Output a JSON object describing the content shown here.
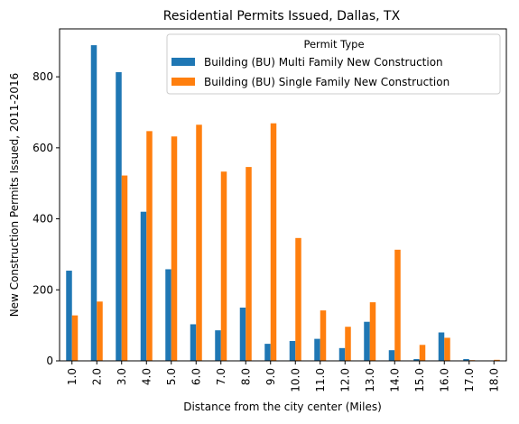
{
  "chart_data": {
    "type": "bar",
    "title": "Residential Permits Issued, Dallas, TX",
    "xlabel": "Distance from the city center (Miles)",
    "ylabel": "New Construction Permits Issued, 2011-2016",
    "categories": [
      "1.0",
      "2.0",
      "3.0",
      "4.0",
      "5.0",
      "6.0",
      "7.0",
      "8.0",
      "9.0",
      "10.0",
      "11.0",
      "12.0",
      "13.0",
      "14.0",
      "15.0",
      "16.0",
      "17.0",
      "18.0"
    ],
    "series": [
      {
        "name": "Building (BU) Multi Family  New Construction",
        "color": "#1f77b4",
        "values": [
          254,
          889,
          813,
          420,
          258,
          103,
          86,
          150,
          48,
          56,
          62,
          36,
          110,
          30,
          5,
          80,
          5,
          0
        ]
      },
      {
        "name": "Building (BU) Single Family  New Construction",
        "color": "#ff7f0e",
        "values": [
          128,
          167,
          522,
          647,
          632,
          665,
          533,
          546,
          669,
          346,
          142,
          96,
          165,
          313,
          45,
          65,
          2,
          3
        ]
      }
    ],
    "ylim": [
      0,
      935
    ],
    "yticks": [
      0,
      200,
      400,
      600,
      800
    ],
    "legend": {
      "title": "Permit Type",
      "placement": "top-right"
    },
    "grid": false
  }
}
